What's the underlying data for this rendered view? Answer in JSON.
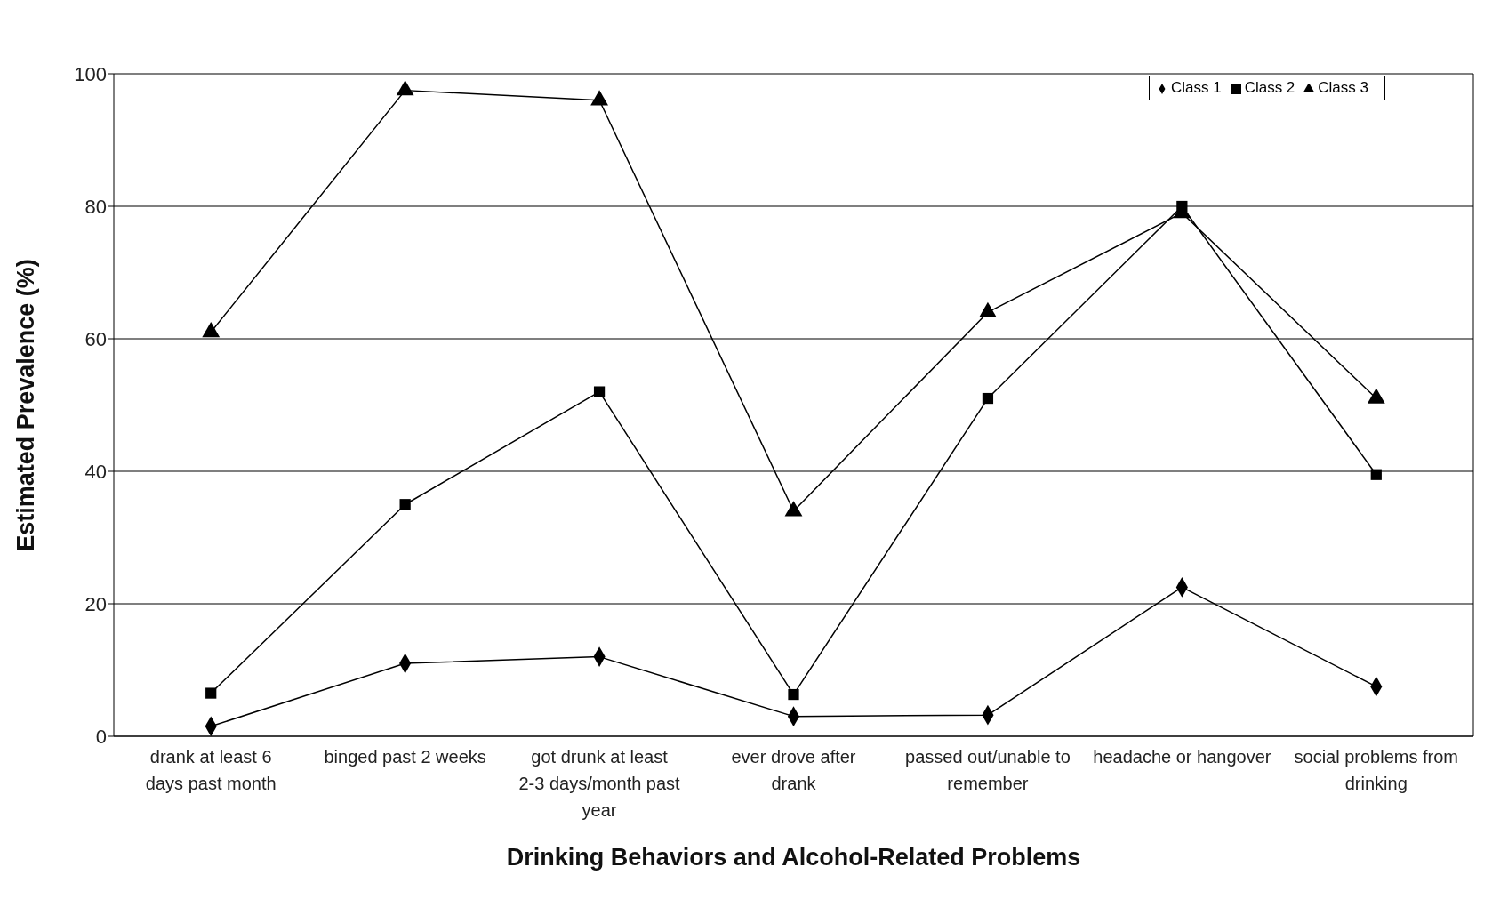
{
  "chart_data": {
    "type": "line",
    "xlabel": "Drinking Behaviors and Alcohol-Related Problems",
    "ylabel": "Estimated Prevalence (%)",
    "categories": [
      "drank at least 6 days past month",
      "binged past 2 weeks",
      "got drunk at least 2-3 days/month past year",
      "ever drove after drank",
      "passed out/unable to remember",
      "headache or hangover",
      "social problems from drinking"
    ],
    "series": [
      {
        "name": "Class 1",
        "color": "#000000",
        "marker": "diamond",
        "values": [
          1.5,
          11,
          12,
          3,
          3.2,
          22.5,
          7.5
        ]
      },
      {
        "name": "Class 2",
        "color": "#000000",
        "marker": "square",
        "values": [
          6.5,
          35,
          52,
          6.3,
          51,
          80,
          39.5
        ]
      },
      {
        "name": "Class 3",
        "color": "#000000",
        "marker": "triangle",
        "values": [
          61,
          97.5,
          96,
          34,
          64,
          79,
          51
        ]
      }
    ],
    "ylim": [
      0,
      100
    ],
    "yticks": [
      0,
      20,
      40,
      60,
      80,
      100
    ],
    "grid": "y",
    "legend": "top right",
    "line_style": "solid"
  }
}
